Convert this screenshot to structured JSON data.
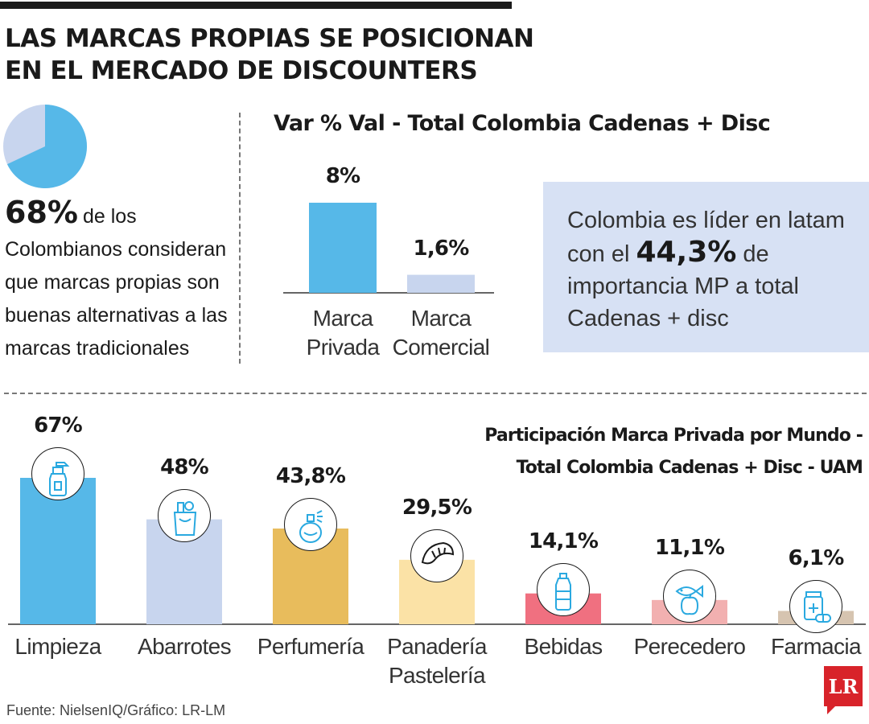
{
  "headline": [
    "LAS MARCAS PROPIAS SE POSICIONAN",
    "EN EL MERCADO DE DISCOUNTERS"
  ],
  "stat": {
    "percent_value": 68,
    "percent": "68%",
    "text": "de los Colombianos consideran que marcas propias son buenas alternativas a las marcas tradicionales",
    "colors": {
      "main": "#56b8e8",
      "rest": "#c8d5ee"
    }
  },
  "callout": {
    "text_before": "Colombia es líder en latam con el",
    "highlight": "44,3%",
    "text_after": "de importancia MP a total Cadenas + disc",
    "background": "#d7e1f4"
  },
  "chart_data": [
    {
      "type": "bar",
      "title": "Var % Val - Total Colombia Cadenas + Disc",
      "categories": [
        "Marca\nPrivada",
        "Marca\nComercial"
      ],
      "values": [
        8,
        1.6
      ],
      "value_labels": [
        "8%",
        "1,6%"
      ],
      "colors": [
        "#56b8e8",
        "#c8d5ee"
      ],
      "ylim": [
        0,
        8
      ],
      "grid": false,
      "legend": "none"
    },
    {
      "type": "bar",
      "title": "Participación Marca Privada por Mundo - Total Colombia Cadenas + Disc - UAM",
      "title_lines": [
        "Participación Marca Privada por Mundo -",
        "Total Colombia Cadenas + Disc - UAM"
      ],
      "categories": [
        "Limpieza",
        "Abarrotes",
        "Perfumería",
        "Panadería\nPastelería",
        "Bebidas",
        "Perecedero",
        "Farmacia"
      ],
      "values": [
        67,
        48,
        43.8,
        29.5,
        14.1,
        11.1,
        6.1
      ],
      "value_labels": [
        "67%",
        "48%",
        "43,8%",
        "29,5%",
        "14,1%",
        "11,1%",
        "6,1%"
      ],
      "colors": [
        "#56b8e8",
        "#c8d5ee",
        "#e8bc5c",
        "#fbe2a6",
        "#f07080",
        "#f2b0b0",
        "#d6c4b0"
      ],
      "icons": [
        "spray-bottle-icon",
        "grocery-bag-icon",
        "perfume-icon",
        "croissant-icon",
        "water-bottle-icon",
        "fish-apple-icon",
        "medicine-icon"
      ],
      "ylim": [
        0,
        67
      ],
      "grid": false,
      "legend": "none"
    }
  ],
  "footer": {
    "source": "Fuente: NielsenIQ/Gráfico: LR-LM",
    "logo": "LR",
    "logo_color": "#d8232a"
  }
}
